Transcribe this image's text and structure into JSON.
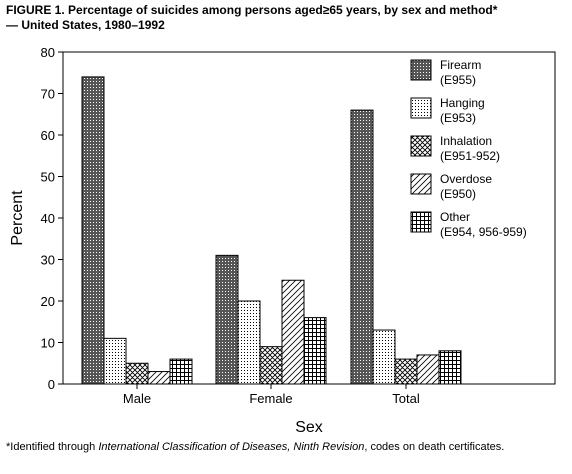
{
  "title_line1": "FIGURE 1. Percentage of suicides among persons aged≥65 years, by sex and method*",
  "title_line2": "— United States, 1980–1992",
  "footnote": {
    "prefix": "*Identified through ",
    "italic": "International Classification of Diseases, Ninth Revision",
    "suffix": ", codes on death certificates."
  },
  "chart_data": {
    "type": "bar",
    "title": "FIGURE 1. Percentage of suicides among persons aged≥65 years, by sex and method* — United States, 1980–1992",
    "xlabel": "Sex",
    "ylabel": "Percent",
    "ylim": [
      0,
      80
    ],
    "yticks": [
      0,
      10,
      20,
      30,
      40,
      50,
      60,
      70,
      80
    ],
    "grid": false,
    "legend_position": "top-right",
    "categories": [
      "Male",
      "Female",
      "Total"
    ],
    "series": [
      {
        "name": "Firearm",
        "code": "(E955)",
        "pattern": "dark-dots",
        "values": [
          74,
          31,
          66
        ]
      },
      {
        "name": "Hanging",
        "code": "(E953)",
        "pattern": "light-dots",
        "values": [
          11,
          20,
          13
        ]
      },
      {
        "name": "Inhalation",
        "code": "(E951-952)",
        "pattern": "crosshatch",
        "values": [
          5,
          9,
          6
        ]
      },
      {
        "name": "Overdose",
        "code": "(E950)",
        "pattern": "diagonal",
        "values": [
          3,
          25,
          7
        ]
      },
      {
        "name": "Other",
        "code": "(E954, 956-959)",
        "pattern": "grid",
        "values": [
          6,
          16,
          8
        ]
      }
    ]
  }
}
